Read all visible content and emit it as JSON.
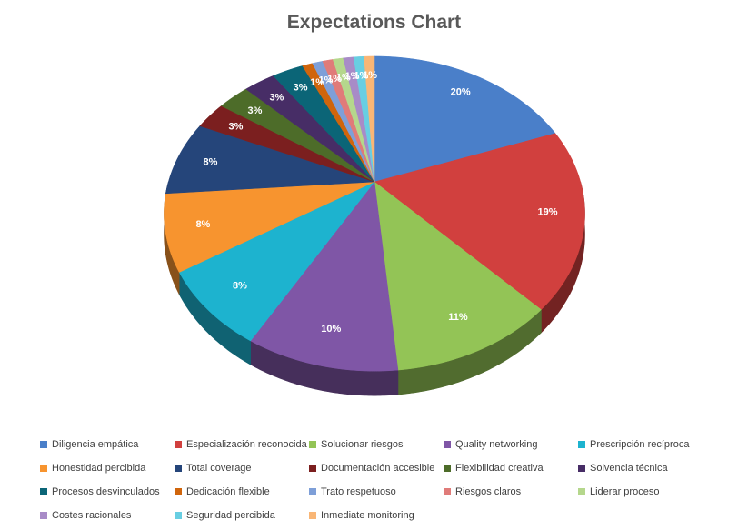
{
  "chart_data": {
    "type": "pie",
    "three_d": true,
    "title": "Expectations Chart",
    "legend_position": "bottom",
    "categories": [
      "Diligencia empática",
      "Especialización reconocida",
      "Solucionar riesgos",
      "Quality networking",
      "Prescripción recíproca",
      "Honestidad percibida",
      "Total coverage",
      "Documentación accesible",
      "Flexibilidad creativa",
      "Solvencia técnica",
      "Procesos desvinculados",
      "Dedicación flexible",
      "Trato respetuoso",
      "Riesgos claros",
      "Liderar proceso",
      "Costes racionales",
      "Seguridad percibida",
      "Inmediate monitoring"
    ],
    "values": [
      20,
      19,
      11,
      10,
      8,
      8,
      8,
      3,
      3,
      3,
      3,
      1,
      1,
      1,
      1,
      1,
      1,
      1
    ],
    "data_labels": [
      "20%",
      "19%",
      "11%",
      "10%",
      "8%",
      "8%",
      "8%",
      "3%",
      "3%",
      "3%",
      "3%",
      "1%",
      "1%",
      "1%",
      "1%",
      "1%",
      "1%",
      "1%"
    ],
    "colors": [
      "#4A7FC9",
      "#D1403E",
      "#93C456",
      "#7F56A6",
      "#1DB3CF",
      "#F7942F",
      "#25457A",
      "#7B1F1F",
      "#4D6C29",
      "#472D66",
      "#0B6577",
      "#D0650C",
      "#7E9FD8",
      "#E07B79",
      "#B5D78C",
      "#A88BC7",
      "#68CEE2",
      "#F9B676"
    ]
  }
}
